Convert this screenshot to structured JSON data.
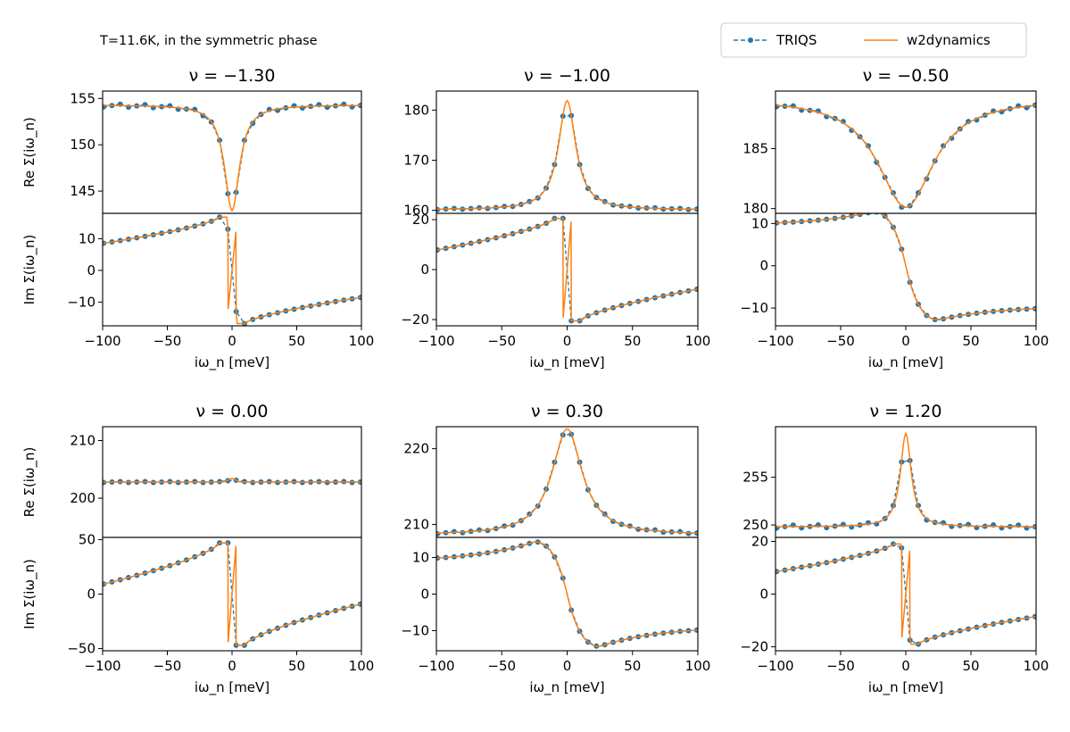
{
  "figure": {
    "caption": "T=11.6K, in the symmetric phase",
    "legend": [
      {
        "name": "TRIQS",
        "color": "#1f77b4",
        "style": "dashed-marker"
      },
      {
        "name": "w2dynamics",
        "color": "#ff7f0e",
        "style": "solid"
      }
    ],
    "colors": {
      "triqs": "#1f77b4",
      "w2dynamics": "#ff7f0e"
    }
  },
  "chart_data": [
    {
      "type": "line",
      "title": "ν = −1.30",
      "xlabel": "iω_n [meV]",
      "ylabel_top": "Re Σ(iω_n)",
      "ylabel_bottom": "Im Σ(iω_n)",
      "xlim": [
        -100,
        100
      ],
      "xticks": [
        "−100",
        "−50",
        "0",
        "50",
        "100"
      ],
      "re": {
        "ylim": [
          142.6,
          155.8
        ],
        "yticks": [
          {
            "v": 145,
            "t": "145"
          },
          {
            "v": 150,
            "t": "150"
          },
          {
            "v": 155,
            "t": "155"
          }
        ],
        "baseline": 154.3,
        "peak": 142.9,
        "width": 7,
        "shape": "lorentz",
        "dot_jitter": 0.15
      },
      "im": {
        "ylim": [
          -17.5,
          18
        ],
        "yticks": [
          {
            "v": -10,
            "t": "−10"
          },
          {
            "v": 0,
            "t": "0"
          },
          {
            "v": 10,
            "t": "10"
          }
        ],
        "edge": 8.5,
        "peak": 16.8,
        "first": 13.0
      },
      "series": [
        {
          "name": "TRIQS"
        },
        {
          "name": "w2dynamics"
        }
      ]
    },
    {
      "type": "line",
      "title": "ν = −1.00",
      "xlabel": "iω_n [meV]",
      "ylabel_top": "",
      "ylabel_bottom": "",
      "xlim": [
        -100,
        100
      ],
      "xticks": [
        "−100",
        "−50",
        "0",
        "50",
        "100"
      ],
      "re": {
        "ylim": [
          159.4,
          183.8
        ],
        "yticks": [
          {
            "v": 160,
            "t": "160"
          },
          {
            "v": 170,
            "t": "170"
          },
          {
            "v": 180,
            "t": "180"
          }
        ],
        "baseline": 160.1,
        "peak": 181.9,
        "width": 8,
        "shape": "lorentz",
        "dot_jitter": 0.1
      },
      "im": {
        "ylim": [
          -22.5,
          22.5
        ],
        "yticks": [
          {
            "v": -20,
            "t": "−20"
          },
          {
            "v": 0,
            "t": "0"
          },
          {
            "v": 20,
            "t": "20"
          }
        ],
        "edge": 7.8,
        "peak": 20.5,
        "first": 20.5
      },
      "series": [
        {
          "name": "TRIQS"
        },
        {
          "name": "w2dynamics"
        }
      ]
    },
    {
      "type": "line",
      "title": "ν = −0.50",
      "xlabel": "iω_n [meV]",
      "ylabel_top": "",
      "ylabel_bottom": "",
      "xlim": [
        -100,
        100
      ],
      "xticks": [
        "−100",
        "−50",
        "0",
        "50",
        "100"
      ],
      "re": {
        "ylim": [
          179.6,
          189.8
        ],
        "yticks": [
          {
            "v": 180,
            "t": "180"
          },
          {
            "v": 185,
            "t": "185"
          }
        ],
        "baseline": 189.2,
        "peak": 180.1,
        "width": 26,
        "shape": "lorentz",
        "dot_jitter": 0.12
      },
      "im": {
        "ylim": [
          -14.2,
          12.4
        ],
        "yticks": [
          {
            "v": -10,
            "t": "−10"
          },
          {
            "v": 0,
            "t": "0"
          },
          {
            "v": 10,
            "t": "10"
          }
        ],
        "edge": 9.5,
        "peak": 12.8,
        "first": 5.5,
        "smooth": true
      },
      "series": [
        {
          "name": "TRIQS"
        },
        {
          "name": "w2dynamics"
        }
      ]
    },
    {
      "type": "line",
      "title": "ν = 0.00",
      "xlabel": "iω_n [meV]",
      "ylabel_top": "Re Σ(iω_n)",
      "ylabel_bottom": "Im Σ(iω_n)",
      "xlim": [
        -100,
        100
      ],
      "xticks": [
        "−100",
        "−50",
        "0",
        "50",
        "100"
      ],
      "re": {
        "ylim": [
          193.2,
          212.4
        ],
        "yticks": [
          {
            "v": 200,
            "t": "200"
          },
          {
            "v": 210,
            "t": "210"
          }
        ],
        "baseline": 202.8,
        "peak": 203.4,
        "width": 4,
        "shape": "flat",
        "dot_jitter": 0.08
      },
      "im": {
        "ylim": [
          -52,
          52
        ],
        "yticks": [
          {
            "v": -50,
            "t": "−50"
          },
          {
            "v": 0,
            "t": "0"
          },
          {
            "v": 50,
            "t": "50"
          }
        ],
        "edge": 9.0,
        "peak": 47.0,
        "first": 47.0
      },
      "series": [
        {
          "name": "TRIQS"
        },
        {
          "name": "w2dynamics"
        }
      ]
    },
    {
      "type": "line",
      "title": "ν = 0.30",
      "xlabel": "iω_n [meV]",
      "ylabel_top": "",
      "ylabel_bottom": "",
      "xlim": [
        -100,
        100
      ],
      "xticks": [
        "−100",
        "−50",
        "0",
        "50",
        "100"
      ],
      "re": {
        "ylim": [
          208.3,
          222.9
        ],
        "yticks": [
          {
            "v": 210,
            "t": "210"
          },
          {
            "v": 220,
            "t": "220"
          }
        ],
        "baseline": 208.6,
        "peak": 222.6,
        "width": 14,
        "shape": "lorentz",
        "dot_jitter": 0.1
      },
      "im": {
        "ylim": [
          -15.5,
          15.5
        ],
        "yticks": [
          {
            "v": -10,
            "t": "−10"
          },
          {
            "v": 0,
            "t": "0"
          },
          {
            "v": 10,
            "t": "10"
          }
        ],
        "edge": 8.8,
        "peak": 14.3,
        "first": 9.0,
        "smooth": true
      },
      "series": [
        {
          "name": "TRIQS"
        },
        {
          "name": "w2dynamics"
        }
      ]
    },
    {
      "type": "line",
      "title": "ν = 1.20",
      "xlabel": "iω_n [meV]",
      "ylabel_top": "",
      "ylabel_bottom": "",
      "xlim": [
        -100,
        100
      ],
      "xticks": [
        "−100",
        "−50",
        "0",
        "50",
        "100"
      ],
      "re": {
        "ylim": [
          248.7,
          260.3
        ],
        "yticks": [
          {
            "v": 250,
            "t": "250"
          },
          {
            "v": 255,
            "t": "255"
          }
        ],
        "baseline": 249.8,
        "peak": 259.6,
        "width": 5,
        "shape": "lorentz",
        "dot_jitter": 0.15
      },
      "im": {
        "ylim": [
          -21.5,
          21.5
        ],
        "yticks": [
          {
            "v": -20,
            "t": "−20"
          },
          {
            "v": 0,
            "t": "0"
          },
          {
            "v": 20,
            "t": "20"
          }
        ],
        "edge": 8.5,
        "peak": 19.0,
        "first": 17.5
      },
      "series": [
        {
          "name": "TRIQS"
        },
        {
          "name": "w2dynamics"
        }
      ]
    }
  ]
}
